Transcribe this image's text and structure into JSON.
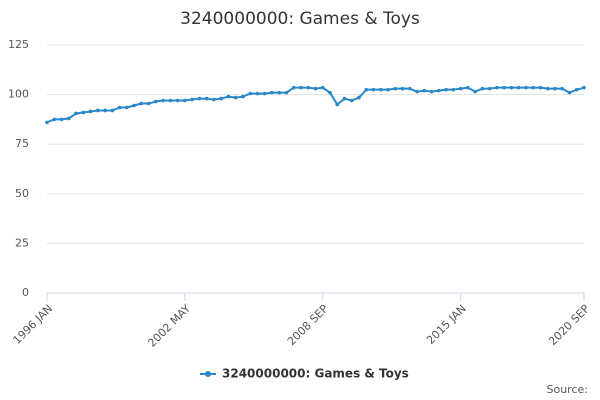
{
  "chart_data": {
    "type": "line",
    "title": "3240000000: Games & Toys",
    "categories": [
      "1996 JAN",
      null,
      null,
      null,
      null,
      null,
      null,
      null,
      null,
      null,
      null,
      null,
      null,
      null,
      null,
      null,
      null,
      null,
      null,
      "2002 MAY",
      null,
      null,
      null,
      null,
      null,
      null,
      null,
      null,
      null,
      null,
      null,
      null,
      null,
      null,
      null,
      null,
      null,
      null,
      "2008 SEP",
      null,
      null,
      null,
      null,
      null,
      null,
      null,
      null,
      null,
      null,
      null,
      null,
      null,
      null,
      null,
      null,
      null,
      null,
      "2015 JAN",
      null,
      null,
      null,
      null,
      null,
      null,
      null,
      null,
      null,
      null,
      null,
      null,
      null,
      null,
      null,
      null,
      "2020 SEP"
    ],
    "series": [
      {
        "name": "3240000000: Games & Toys",
        "color": "#2a87c8",
        "values": [
          86,
          87.5,
          87.5,
          88,
          90.5,
          91,
          91.5,
          92,
          92,
          92,
          93.5,
          93.5,
          94.5,
          95.5,
          95.5,
          96.5,
          97,
          97,
          97,
          97,
          97.5,
          98,
          98,
          97.5,
          98,
          99,
          98.5,
          99,
          100.5,
          100.5,
          100.5,
          101,
          101,
          101,
          103.5,
          103.5,
          103.5,
          103,
          103.5,
          101,
          95,
          98,
          97,
          98.5,
          102.5,
          102.5,
          102.5,
          102.5,
          103,
          103,
          103,
          101.5,
          102,
          101.5,
          102,
          102.5,
          102.5,
          103,
          103.5,
          101.5,
          103,
          103,
          103.5,
          103.5,
          103.5,
          103.5,
          103.5,
          103.5,
          103.5,
          103,
          103,
          103,
          101,
          102.5,
          103.5
        ]
      }
    ],
    "ylim": [
      0,
      125
    ],
    "yticks": [
      0,
      25,
      50,
      75,
      100,
      125
    ],
    "grid": true,
    "source": "Source:"
  }
}
